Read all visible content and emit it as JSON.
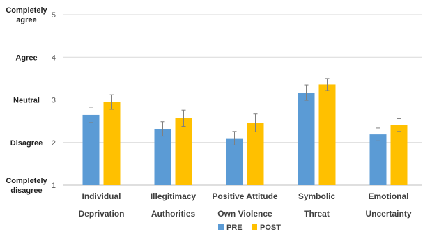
{
  "chart_data": {
    "type": "bar",
    "ylim": [
      1,
      5
    ],
    "yticks": [
      1,
      2,
      3,
      4,
      5
    ],
    "grid": true,
    "legend_position": "bottom",
    "y_level_labels": [
      {
        "value": 5,
        "lines": [
          "Completely",
          "agree"
        ]
      },
      {
        "value": 4,
        "lines": [
          "Agree"
        ]
      },
      {
        "value": 3,
        "lines": [
          "Neutral"
        ]
      },
      {
        "value": 2,
        "lines": [
          "Disagree"
        ]
      },
      {
        "value": 1,
        "lines": [
          "Completely",
          "disagree"
        ]
      }
    ],
    "categories": [
      {
        "lines": [
          "Individual",
          "Deprivation"
        ]
      },
      {
        "lines": [
          "Illegitimacy",
          "Authorities"
        ]
      },
      {
        "lines": [
          "Positive Attitude",
          "Own Violence"
        ]
      },
      {
        "lines": [
          "Symbolic",
          "Threat"
        ]
      },
      {
        "lines": [
          "Emotional",
          "Uncertainty"
        ]
      }
    ],
    "series": [
      {
        "name": "PRE",
        "color": "#5B9BD5",
        "values": [
          2.65,
          2.32,
          2.1,
          3.17,
          2.19
        ],
        "errors": [
          0.18,
          0.17,
          0.16,
          0.18,
          0.15
        ]
      },
      {
        "name": "POST",
        "color": "#FFC000",
        "values": [
          2.95,
          2.57,
          2.46,
          3.36,
          2.41
        ],
        "errors": [
          0.17,
          0.19,
          0.21,
          0.14,
          0.15
        ]
      }
    ]
  }
}
